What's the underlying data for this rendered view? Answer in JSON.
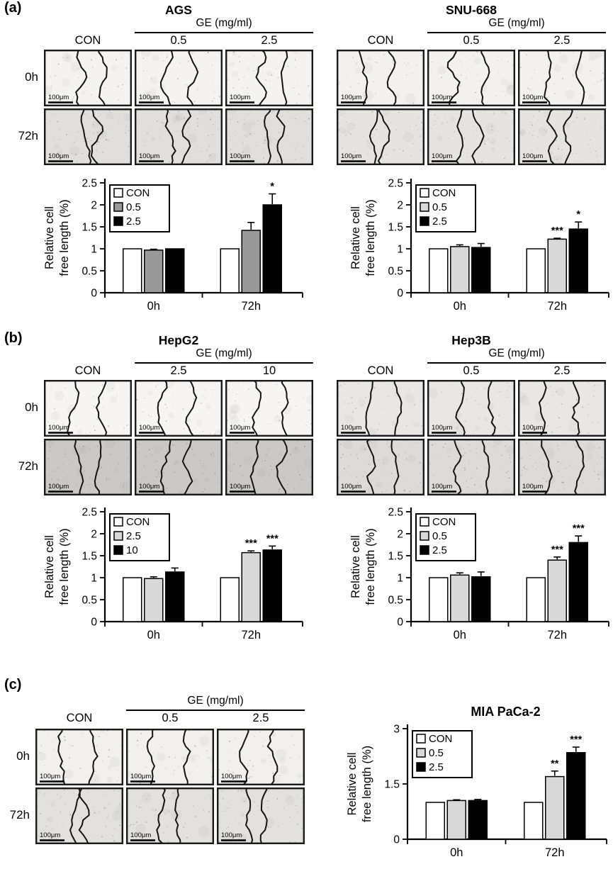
{
  "figure": {
    "panels": [
      {
        "label": "(a)",
        "image_blocks": [
          {
            "title": "AGS",
            "treatment_header": "GE (mg/ml)",
            "col_labels": [
              "CON",
              "0.5",
              "2.5"
            ],
            "row_labels": [
              "0h",
              "72h"
            ],
            "show_row_labels": true,
            "scale_bar_label": "100μm",
            "row_tints": [
              "#f4f3f1",
              "#e1dfdc"
            ],
            "wound_fronts": [
              [
                [
                  0.42,
                  0.67
                ],
                [
                  0.36,
                  0.66
                ],
                [
                  0.4,
                  0.66
                ]
              ],
              [
                [
                  0.47,
                  0.6
                ],
                [
                  0.4,
                  0.58
                ],
                [
                  0.48,
                  0.63
                ]
              ]
            ]
          },
          {
            "title": "SNU-668",
            "treatment_header": "GE (mg/ml)",
            "col_labels": [
              "CON",
              "0.5",
              "2.5"
            ],
            "row_labels": [
              "0h",
              "72h"
            ],
            "show_row_labels": false,
            "scale_bar_label": "100μm",
            "row_tints": [
              "#f2f1ef",
              "#e6e4e1"
            ],
            "wound_fronts": [
              [
                [
                  0.3,
                  0.62
                ],
                [
                  0.3,
                  0.66
                ],
                [
                  0.34,
                  0.7
                ]
              ],
              [
                [
                  0.42,
                  0.54
                ],
                [
                  0.38,
                  0.57
                ],
                [
                  0.38,
                  0.56
                ]
              ]
            ]
          }
        ]
      },
      {
        "label": "(b)",
        "image_blocks": [
          {
            "title": "HepG2",
            "treatment_header": "GE (mg/ml)",
            "col_labels": [
              "CON",
              "2.5",
              "10"
            ],
            "row_labels": [
              "0h",
              "72h"
            ],
            "show_row_labels": true,
            "scale_bar_label": "100μm",
            "row_tints": [
              "#f6f5f3",
              "#cbc9c5"
            ],
            "wound_fronts": [
              [
                [
                  0.33,
                  0.66
                ],
                [
                  0.3,
                  0.64
                ],
                [
                  0.36,
                  0.68
                ]
              ],
              [
                [
                  0.4,
                  0.62
                ],
                [
                  0.36,
                  0.6
                ],
                [
                  0.33,
                  0.64
                ]
              ]
            ]
          },
          {
            "title": "Hep3B",
            "treatment_header": "GE (mg/ml)",
            "col_labels": [
              "CON",
              "0.5",
              "2.5"
            ],
            "row_labels": [
              "0h",
              "72h"
            ],
            "show_row_labels": false,
            "scale_bar_label": "100μm",
            "row_tints": [
              "#e9e7e4",
              "#dddbd7"
            ],
            "wound_fronts": [
              [
                [
                  0.36,
                  0.7
                ],
                [
                  0.38,
                  0.72
                ],
                [
                  0.28,
                  0.66
                ]
              ],
              [
                [
                  0.4,
                  0.66
                ],
                [
                  0.33,
                  0.66
                ],
                [
                  0.32,
                  0.7
                ]
              ]
            ]
          }
        ]
      },
      {
        "label": "(c)",
        "image_blocks": [
          {
            "title": "",
            "treatment_header": "GE (mg/ml)",
            "col_labels": [
              "CON",
              "0.5",
              "2.5"
            ],
            "row_labels": [
              "0h",
              "72h"
            ],
            "show_row_labels": true,
            "scale_bar_label": "100μm",
            "row_tints": [
              "#f1f0ee",
              "#e3e1de"
            ],
            "wound_fronts": [
              [
                [
                  0.3,
                  0.65
                ],
                [
                  0.28,
                  0.68
                ],
                [
                  0.3,
                  0.64
                ]
              ],
              [
                [
                  0.45,
                  0.56
                ],
                [
                  0.4,
                  0.6
                ],
                [
                  0.36,
                  0.54
                ]
              ]
            ]
          }
        ]
      }
    ]
  },
  "chart_data": [
    {
      "type": "bar",
      "panel": "(a)",
      "cell_line": "AGS",
      "title": "",
      "categories": [
        "0h",
        "72h"
      ],
      "series": [
        {
          "name": "CON",
          "color": "#ffffff",
          "values": [
            1.0,
            1.0
          ],
          "errors": [
            0,
            0
          ],
          "sig": [
            "",
            ""
          ]
        },
        {
          "name": "0.5",
          "color": "#999999",
          "values": [
            0.97,
            1.42
          ],
          "errors": [
            0.02,
            0.18
          ],
          "sig": [
            "",
            ""
          ]
        },
        {
          "name": "2.5",
          "color": "#000000",
          "values": [
            1.0,
            2.0
          ],
          "errors": [
            0,
            0.25
          ],
          "sig": [
            "",
            "*"
          ]
        }
      ],
      "ylabel": "Relative cell free length (%)",
      "ylabel_lines": [
        "Relative cell",
        "free length (%)"
      ],
      "ylim": [
        0,
        2.5
      ],
      "yticks": [
        0,
        0.5,
        1,
        1.5,
        2,
        2.5
      ],
      "legend_position": "top-left",
      "grid": false
    },
    {
      "type": "bar",
      "panel": "(a)",
      "cell_line": "SNU-668",
      "title": "",
      "categories": [
        "0h",
        "72h"
      ],
      "series": [
        {
          "name": "CON",
          "color": "#ffffff",
          "values": [
            1.0,
            1.0
          ],
          "errors": [
            0,
            0
          ],
          "sig": [
            "",
            ""
          ]
        },
        {
          "name": "0.5",
          "color": "#d8d8d8",
          "values": [
            1.05,
            1.22
          ],
          "errors": [
            0.04,
            0.02
          ],
          "sig": [
            "",
            "***"
          ]
        },
        {
          "name": "2.5",
          "color": "#000000",
          "values": [
            1.03,
            1.45
          ],
          "errors": [
            0.09,
            0.16
          ],
          "sig": [
            "",
            "*"
          ]
        }
      ],
      "ylabel": "Relative cell free length (%)",
      "ylabel_lines": [
        "Relative cell",
        "free length (%)"
      ],
      "ylim": [
        0,
        2.5
      ],
      "yticks": [
        0,
        0.5,
        1,
        1.5,
        2,
        2.5
      ],
      "legend_position": "top-left",
      "grid": false
    },
    {
      "type": "bar",
      "panel": "(b)",
      "cell_line": "HepG2",
      "title": "",
      "categories": [
        "0h",
        "72h"
      ],
      "series": [
        {
          "name": "CON",
          "color": "#ffffff",
          "values": [
            1.0,
            1.0
          ],
          "errors": [
            0,
            0
          ],
          "sig": [
            "",
            ""
          ]
        },
        {
          "name": "2.5",
          "color": "#d8d8d8",
          "values": [
            0.98,
            1.57
          ],
          "errors": [
            0.04,
            0.04
          ],
          "sig": [
            "",
            "***"
          ]
        },
        {
          "name": "10",
          "color": "#000000",
          "values": [
            1.13,
            1.63
          ],
          "errors": [
            0.09,
            0.09
          ],
          "sig": [
            "",
            "***"
          ]
        }
      ],
      "ylabel": "Relative cell free length (%)",
      "ylabel_lines": [
        "Relative cell",
        "free length (%)"
      ],
      "ylim": [
        0,
        2.5
      ],
      "yticks": [
        0,
        0.5,
        1,
        1.5,
        2,
        2.5
      ],
      "legend_position": "top-left",
      "grid": false
    },
    {
      "type": "bar",
      "panel": "(b)",
      "cell_line": "Hep3B",
      "title": "",
      "categories": [
        "0h",
        "72h"
      ],
      "series": [
        {
          "name": "CON",
          "color": "#ffffff",
          "values": [
            1.0,
            1.0
          ],
          "errors": [
            0,
            0
          ],
          "sig": [
            "",
            ""
          ]
        },
        {
          "name": "0.5",
          "color": "#d8d8d8",
          "values": [
            1.06,
            1.4
          ],
          "errors": [
            0.05,
            0.07
          ],
          "sig": [
            "",
            "***"
          ]
        },
        {
          "name": "2.5",
          "color": "#000000",
          "values": [
            1.02,
            1.8
          ],
          "errors": [
            0.11,
            0.15
          ],
          "sig": [
            "",
            "***"
          ]
        }
      ],
      "ylabel": "Relative cell free length (%)",
      "ylabel_lines": [
        "Relative cell",
        "free length (%)"
      ],
      "ylim": [
        0,
        2.5
      ],
      "yticks": [
        0,
        0.5,
        1,
        1.5,
        2,
        2.5
      ],
      "legend_position": "top-left",
      "grid": false
    },
    {
      "type": "bar",
      "panel": "(c)",
      "cell_line": "MIA PaCa-2",
      "title": "MIA PaCa-2",
      "categories": [
        "0h",
        "72h"
      ],
      "series": [
        {
          "name": "CON",
          "color": "#ffffff",
          "values": [
            1.0,
            1.0
          ],
          "errors": [
            0,
            0
          ],
          "sig": [
            "",
            ""
          ]
        },
        {
          "name": "0.5",
          "color": "#d8d8d8",
          "values": [
            1.05,
            1.7
          ],
          "errors": [
            0.02,
            0.15
          ],
          "sig": [
            "",
            "**"
          ]
        },
        {
          "name": "2.5",
          "color": "#000000",
          "values": [
            1.05,
            2.35
          ],
          "errors": [
            0.03,
            0.15
          ],
          "sig": [
            "",
            "***"
          ]
        }
      ],
      "ylabel": "Relative cell free length (%)",
      "ylabel_lines": [
        "Relative cell",
        "free length (%)"
      ],
      "ylim": [
        0,
        3
      ],
      "yticks": [
        0,
        1.5,
        3
      ],
      "legend_position": "top-left",
      "grid": false
    }
  ]
}
